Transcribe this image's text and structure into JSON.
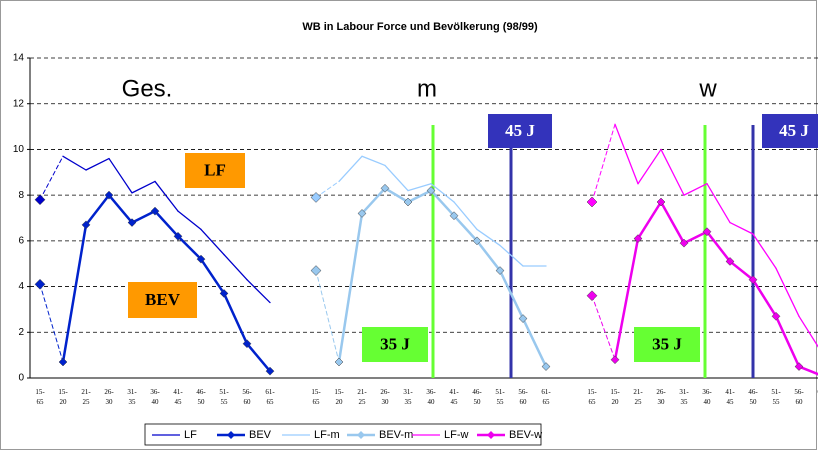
{
  "chart_data": {
    "type": "line",
    "title": "WB in Labour Force und Bevölkerung (98/99)",
    "categories": [
      "15-\n65",
      "15-\n20",
      "21-\n25",
      "26-\n30",
      "31-\n35",
      "36-\n40",
      "41-\n45",
      "46-\n50",
      "51-\n55",
      "56-\n60",
      "61-\n65",
      null,
      "15-\n65",
      "15-\n20",
      "21-\n25",
      "26-\n30",
      "31-\n35",
      "36-\n40",
      "41-\n45",
      "46-\n50",
      "51-\n55",
      "56-\n60",
      "61-\n65",
      null,
      "15-\n65",
      "15-\n20",
      "21-\n25",
      "26-\n30",
      "31-\n35",
      "36-\n40",
      "41-\n45",
      "46-\n50",
      "51-\n55",
      "56-\n60",
      "61-\n65"
    ],
    "ylim": [
      0,
      14
    ],
    "yticks": [
      0,
      2,
      4,
      6,
      8,
      10,
      12,
      14
    ],
    "grid": true,
    "series": [
      {
        "name": "LF",
        "color": "#0000cc",
        "markers": false,
        "values": [
          7.8,
          9.7,
          9.1,
          9.6,
          8.1,
          8.6,
          7.3,
          6.5,
          5.4,
          4.3,
          3.3,
          null,
          null,
          null,
          null,
          null,
          null,
          null,
          null,
          null,
          null,
          null,
          null,
          null,
          null,
          null,
          null,
          null,
          null,
          null,
          null,
          null,
          null,
          null,
          null
        ]
      },
      {
        "name": "BEV",
        "color": "#0022cc",
        "markers": true,
        "values": [
          4.1,
          0.7,
          6.7,
          8.0,
          6.8,
          7.3,
          6.2,
          5.2,
          3.7,
          1.5,
          0.3,
          null,
          null,
          null,
          null,
          null,
          null,
          null,
          null,
          null,
          null,
          null,
          null,
          null,
          null,
          null,
          null,
          null,
          null,
          null,
          null,
          null,
          null,
          null,
          null
        ]
      },
      {
        "name": "LF-m",
        "color": "#99ccff",
        "markers": false,
        "values": [
          null,
          null,
          null,
          null,
          null,
          null,
          null,
          null,
          null,
          null,
          null,
          null,
          7.9,
          8.6,
          9.7,
          9.3,
          8.2,
          8.5,
          7.7,
          6.5,
          5.8,
          4.9,
          4.9,
          null,
          null,
          null,
          null,
          null,
          null,
          null,
          null,
          null,
          null,
          null,
          null
        ]
      },
      {
        "name": "BEV-m",
        "color": "#99c8ee",
        "markers": true,
        "values": [
          null,
          null,
          null,
          null,
          null,
          null,
          null,
          null,
          null,
          null,
          null,
          null,
          4.7,
          0.7,
          7.2,
          8.3,
          7.7,
          8.2,
          7.1,
          6.0,
          4.7,
          2.6,
          0.5,
          null,
          null,
          null,
          null,
          null,
          null,
          null,
          null,
          null,
          null,
          null,
          null
        ]
      },
      {
        "name": "LF-w",
        "color": "#ff00ff",
        "markers": false,
        "values": [
          null,
          null,
          null,
          null,
          null,
          null,
          null,
          null,
          null,
          null,
          null,
          null,
          null,
          null,
          null,
          null,
          null,
          null,
          null,
          null,
          null,
          null,
          null,
          null,
          7.7,
          11.1,
          8.5,
          10.0,
          8.0,
          8.5,
          6.8,
          6.3,
          4.8,
          2.7,
          1.1
        ]
      },
      {
        "name": "BEV-w",
        "color": "#ee00ee",
        "markers": true,
        "values": [
          null,
          null,
          null,
          null,
          null,
          null,
          null,
          null,
          null,
          null,
          null,
          null,
          null,
          null,
          null,
          null,
          null,
          null,
          null,
          null,
          null,
          null,
          null,
          null,
          3.6,
          0.8,
          6.1,
          7.7,
          5.9,
          6.4,
          5.1,
          4.3,
          2.7,
          0.5,
          0.1
        ]
      }
    ],
    "panel_labels": [
      "Ges.",
      "m",
      "w"
    ],
    "boxes": [
      {
        "text": "LF",
        "color": "#ff9900"
      },
      {
        "text": "BEV",
        "color": "#ff9900"
      },
      {
        "text": "35 J",
        "color": "#66ff33"
      },
      {
        "text": "35 J",
        "color": "#66ff33"
      },
      {
        "text": "45 J",
        "color": "#3333bb"
      },
      {
        "text": "45 J",
        "color": "#3333bb"
      }
    ]
  }
}
